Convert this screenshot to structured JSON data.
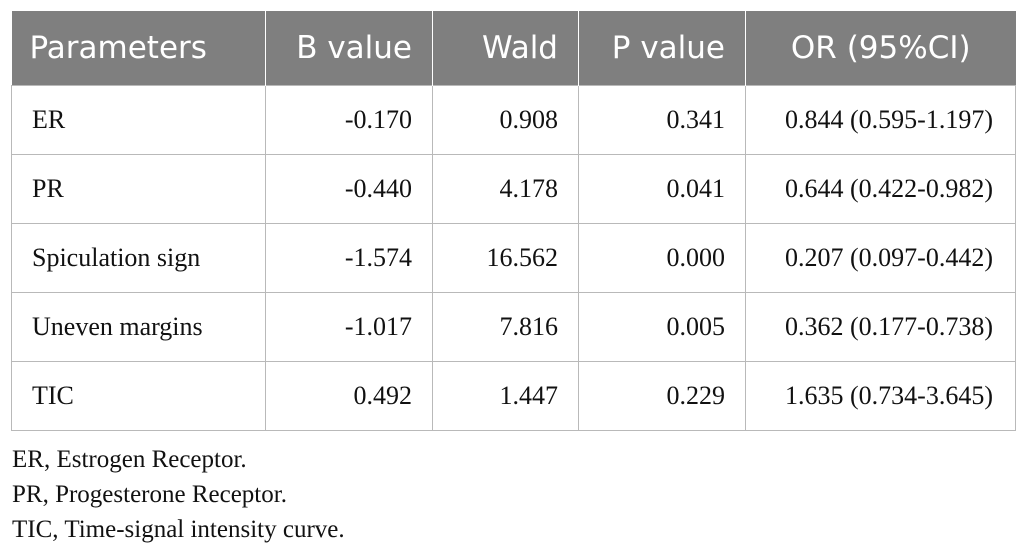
{
  "table": {
    "headers": [
      "Parameters",
      "B value",
      "Wald",
      "P value",
      "OR (95%CI)"
    ],
    "rows": [
      [
        "ER",
        "-0.170",
        "0.908",
        "0.341",
        "0.844 (0.595-1.197)"
      ],
      [
        "PR",
        "-0.440",
        "4.178",
        "0.041",
        "0.644 (0.422-0.982)"
      ],
      [
        "Spiculation sign",
        "-1.574",
        "16.562",
        "0.000",
        "0.207 (0.097-0.442)"
      ],
      [
        "Uneven margins",
        "-1.017",
        "7.816",
        "0.005",
        "0.362 (0.177-0.738)"
      ],
      [
        "TIC",
        "0.492",
        "1.447",
        "0.229",
        "1.635 (0.734-3.645)"
      ]
    ]
  },
  "footnotes": [
    "ER, Estrogen Receptor.",
    "PR, Progesterone Receptor.",
    "TIC, Time-signal intensity curve."
  ],
  "colors": {
    "header_background": "#7f7f7f",
    "header_text": "#ffffff",
    "grid_line": "#b9b9b9"
  }
}
